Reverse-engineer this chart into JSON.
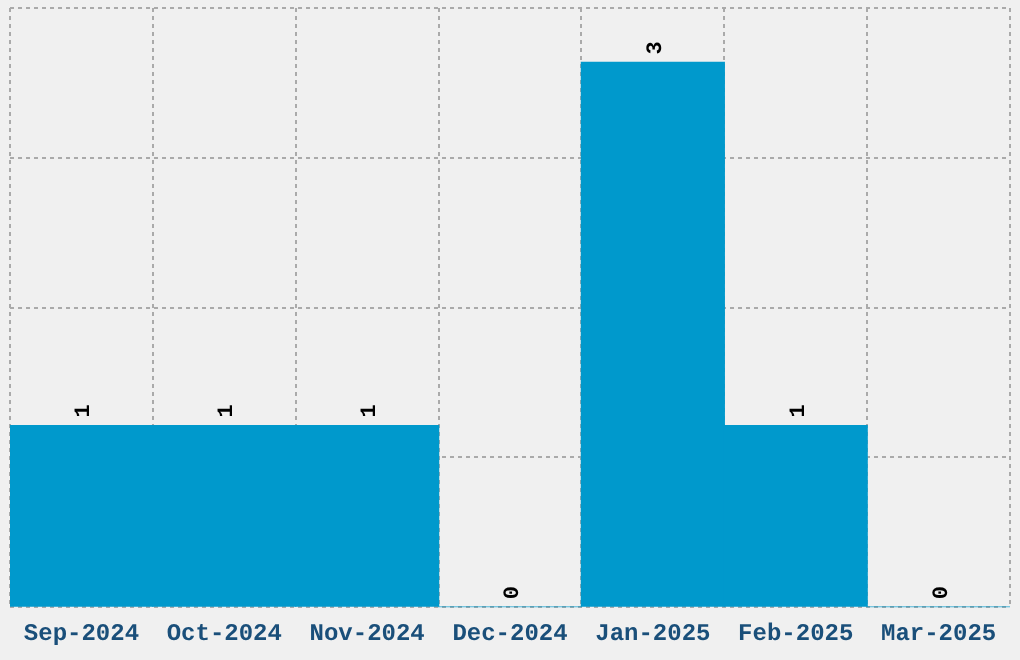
{
  "chart_data": {
    "type": "bar",
    "categories": [
      "Sep-2024",
      "Oct-2024",
      "Nov-2024",
      "Dec-2024",
      "Jan-2025",
      "Feb-2025",
      "Mar-2025"
    ],
    "values": [
      1,
      1,
      1,
      0,
      3,
      1,
      0
    ],
    "color": "#0099cc",
    "data_labels": true,
    "grid": true,
    "tick_labels": "x",
    "ylim": [
      0,
      3.3
    ],
    "yticks": [
      {
        "value": 0,
        "label": null
      },
      {
        "value": 0.825,
        "label": null
      },
      {
        "value": 1.65,
        "label": null
      },
      {
        "value": 2.475,
        "label": null
      },
      {
        "value": 3.3,
        "label": null
      }
    ]
  }
}
